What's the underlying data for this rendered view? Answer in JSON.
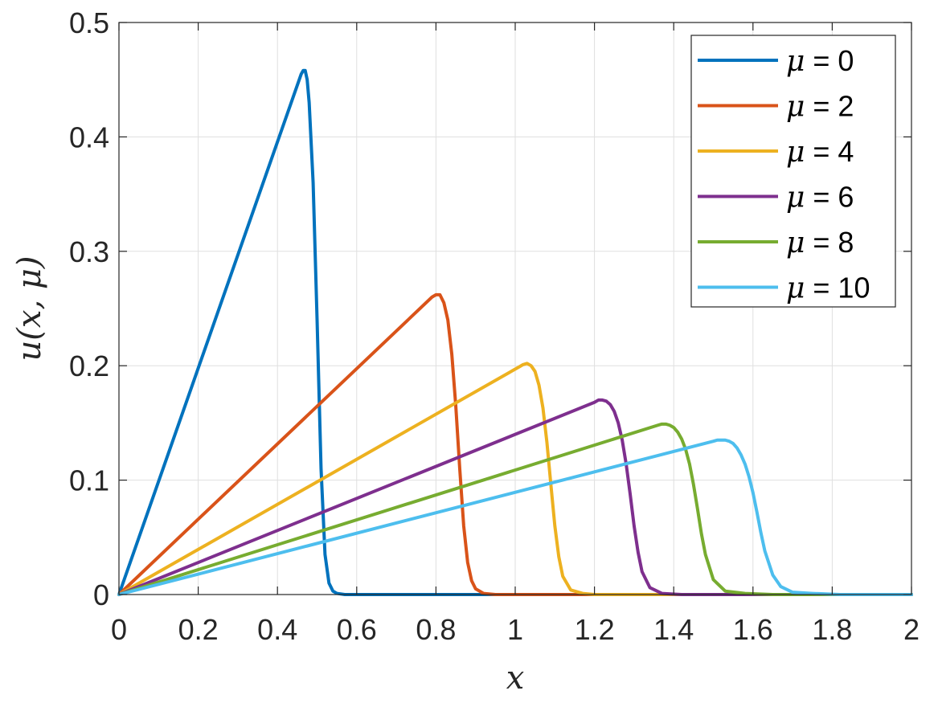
{
  "chart_data": {
    "type": "line",
    "title": "",
    "xlabel": "x",
    "ylabel": "u(x, μ)",
    "xlim": [
      0,
      2
    ],
    "ylim": [
      0,
      0.5
    ],
    "xticks": [
      0,
      0.2,
      0.4,
      0.6,
      0.8,
      1,
      1.2,
      1.4,
      1.6,
      1.8,
      2
    ],
    "xtick_labels": [
      "0",
      "0.2",
      "0.4",
      "0.6",
      "0.8",
      "1",
      "1.2",
      "1.4",
      "1.6",
      "1.8",
      "2"
    ],
    "yticks": [
      0,
      0.1,
      0.2,
      0.3,
      0.4,
      0.5
    ],
    "ytick_labels": [
      "0",
      "0.1",
      "0.2",
      "0.3",
      "0.4",
      "0.5"
    ],
    "grid": true,
    "legend_position": "top-right",
    "series": [
      {
        "name": "μ = 0",
        "color": "#0072BD",
        "x": [
          0,
          0.46,
          0.465,
          0.47,
          0.475,
          0.48,
          0.49,
          0.5,
          0.51,
          0.52,
          0.53,
          0.54,
          0.55,
          0.57,
          0.6,
          2
        ],
        "y": [
          0,
          0.455,
          0.458,
          0.458,
          0.45,
          0.43,
          0.36,
          0.24,
          0.11,
          0.035,
          0.01,
          0.003,
          0.001,
          0,
          0,
          0
        ]
      },
      {
        "name": "μ = 2",
        "color": "#D95319",
        "x": [
          0,
          0.79,
          0.8,
          0.81,
          0.82,
          0.83,
          0.84,
          0.85,
          0.86,
          0.87,
          0.88,
          0.89,
          0.9,
          0.92,
          0.95,
          2
        ],
        "y": [
          0,
          0.26,
          0.262,
          0.262,
          0.255,
          0.24,
          0.21,
          0.165,
          0.11,
          0.06,
          0.028,
          0.012,
          0.005,
          0.001,
          0,
          0
        ]
      },
      {
        "name": "μ = 4",
        "color": "#EDB120",
        "x": [
          0,
          1.01,
          1.02,
          1.03,
          1.04,
          1.05,
          1.06,
          1.07,
          1.08,
          1.09,
          1.1,
          1.11,
          1.12,
          1.14,
          1.17,
          1.2,
          2
        ],
        "y": [
          0,
          0.199,
          0.201,
          0.202,
          0.2,
          0.195,
          0.183,
          0.163,
          0.133,
          0.096,
          0.06,
          0.033,
          0.016,
          0.004,
          0.001,
          0,
          0
        ]
      },
      {
        "name": "μ = 6",
        "color": "#7E2F8E",
        "x": [
          0,
          1.2,
          1.21,
          1.22,
          1.23,
          1.24,
          1.25,
          1.26,
          1.27,
          1.28,
          1.29,
          1.3,
          1.31,
          1.32,
          1.34,
          1.37,
          1.42,
          2
        ],
        "y": [
          0,
          0.168,
          0.17,
          0.17,
          0.169,
          0.166,
          0.16,
          0.15,
          0.135,
          0.114,
          0.088,
          0.06,
          0.037,
          0.02,
          0.006,
          0.001,
          0,
          0
        ]
      },
      {
        "name": "μ = 8",
        "color": "#77AC30",
        "x": [
          0,
          1.36,
          1.37,
          1.38,
          1.39,
          1.4,
          1.41,
          1.42,
          1.43,
          1.44,
          1.45,
          1.46,
          1.47,
          1.48,
          1.5,
          1.53,
          1.58,
          1.65,
          2
        ],
        "y": [
          0,
          0.148,
          0.149,
          0.149,
          0.148,
          0.146,
          0.142,
          0.136,
          0.127,
          0.114,
          0.096,
          0.075,
          0.053,
          0.035,
          0.013,
          0.003,
          0.001,
          0,
          0
        ]
      },
      {
        "name": "μ = 10",
        "color": "#4DBEEE",
        "x": [
          0,
          1.5,
          1.51,
          1.52,
          1.53,
          1.54,
          1.55,
          1.56,
          1.57,
          1.58,
          1.59,
          1.6,
          1.61,
          1.62,
          1.63,
          1.65,
          1.67,
          1.7,
          1.75,
          1.82,
          2
        ],
        "y": [
          0,
          0.134,
          0.135,
          0.135,
          0.135,
          0.134,
          0.132,
          0.128,
          0.122,
          0.114,
          0.103,
          0.089,
          0.072,
          0.054,
          0.038,
          0.017,
          0.007,
          0.002,
          0.001,
          0,
          0
        ]
      }
    ]
  }
}
